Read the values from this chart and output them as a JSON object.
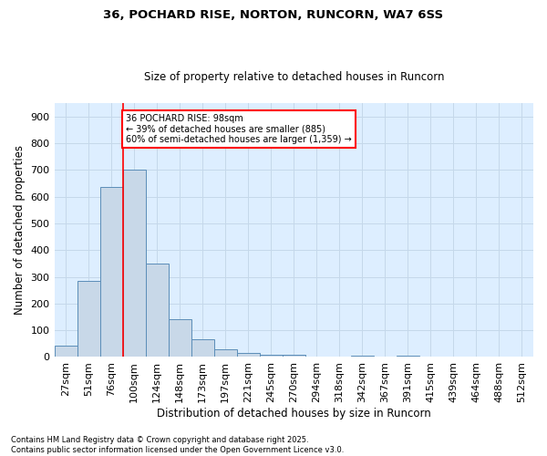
{
  "title1": "36, POCHARD RISE, NORTON, RUNCORN, WA7 6SS",
  "title2": "Size of property relative to detached houses in Runcorn",
  "xlabel": "Distribution of detached houses by size in Runcorn",
  "ylabel": "Number of detached properties",
  "bar_labels": [
    "27sqm",
    "51sqm",
    "76sqm",
    "100sqm",
    "124sqm",
    "148sqm",
    "173sqm",
    "197sqm",
    "221sqm",
    "245sqm",
    "270sqm",
    "294sqm",
    "318sqm",
    "342sqm",
    "367sqm",
    "391sqm",
    "415sqm",
    "439sqm",
    "464sqm",
    "488sqm",
    "512sqm"
  ],
  "bar_values": [
    42,
    285,
    635,
    700,
    350,
    143,
    65,
    28,
    16,
    10,
    8,
    0,
    0,
    5,
    0,
    5,
    0,
    0,
    0,
    0,
    0
  ],
  "bar_color": "#c8d8e8",
  "bar_edge_color": "#5b8db8",
  "annotation_text": "36 POCHARD RISE: 98sqm\n← 39% of detached houses are smaller (885)\n60% of semi-detached houses are larger (1,359) →",
  "annotation_box_color": "white",
  "annotation_box_edge_color": "red",
  "vline_color": "red",
  "grid_color": "#c5d8ea",
  "bg_color": "#ddeeff",
  "footer_line1": "Contains HM Land Registry data © Crown copyright and database right 2025.",
  "footer_line2": "Contains public sector information licensed under the Open Government Licence v3.0.",
  "ylim": [
    0,
    950
  ],
  "yticks": [
    0,
    100,
    200,
    300,
    400,
    500,
    600,
    700,
    800,
    900
  ]
}
